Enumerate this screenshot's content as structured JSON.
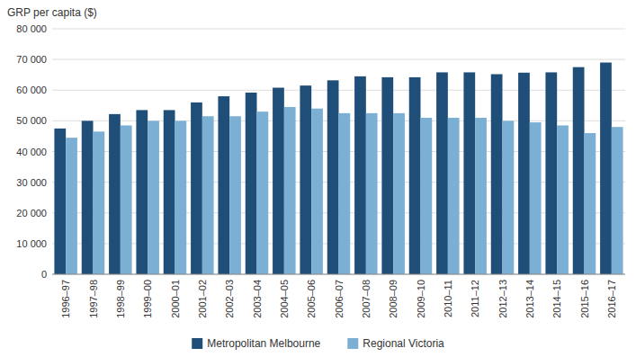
{
  "chart_data": {
    "type": "bar",
    "ylabel": "GRP per capita ($)",
    "categories": [
      "1996–97",
      "1997–98",
      "1998–99",
      "1999–00",
      "2000–01",
      "2001–02",
      "2002–03",
      "2003–04",
      "2004–05",
      "2005–06",
      "2006–07",
      "2007–08",
      "2008–09",
      "2009–10",
      "2010–11",
      "2011–12",
      "2012–13",
      "2013–14",
      "2014–15",
      "2015–16",
      "2016–17"
    ],
    "series": [
      {
        "name": "Metropolitan Melbourne",
        "color": "#1F4E79",
        "values": [
          47500,
          50000,
          52200,
          53500,
          53500,
          56000,
          58000,
          59200,
          60800,
          61500,
          63200,
          64500,
          64200,
          64200,
          65800,
          65800,
          65200,
          65700,
          65800,
          67500,
          69000
        ]
      },
      {
        "name": "Regional Victoria",
        "color": "#7BAFD4",
        "values": [
          44500,
          46500,
          48500,
          50000,
          50000,
          51500,
          51500,
          53000,
          54500,
          54000,
          52500,
          52500,
          52500,
          51000,
          51000,
          51000,
          50000,
          49500,
          48500,
          46000,
          48000
        ]
      }
    ],
    "ylim": [
      0,
      80000
    ],
    "yticks": [
      0,
      {
        "value": 10000,
        "label": "10 000"
      },
      {
        "value": 20000,
        "label": "20 000"
      },
      {
        "value": 30000,
        "label": "30 000"
      },
      {
        "value": 40000,
        "label": "40 000"
      },
      {
        "value": 50000,
        "label": "50 000"
      },
      {
        "value": 60000,
        "label": "60 000"
      },
      {
        "value": 70000,
        "label": "70 000"
      },
      {
        "value": 80000,
        "label": "80 000"
      }
    ],
    "grid": true,
    "legend": "bottom"
  }
}
